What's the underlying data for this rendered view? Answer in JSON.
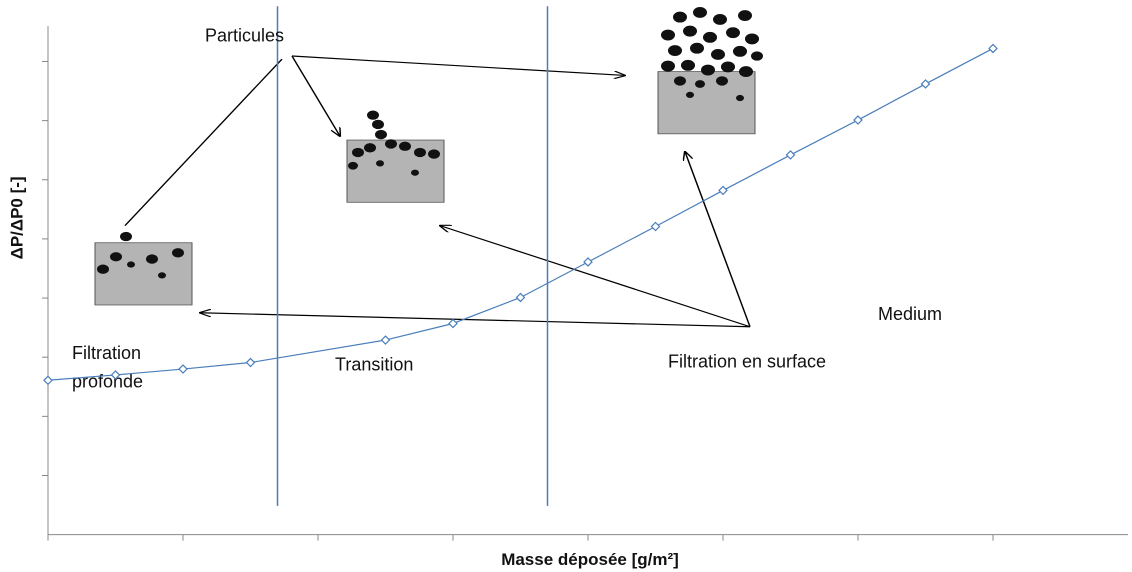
{
  "chart_data": {
    "type": "line",
    "xlabel": "Masse déposée [g/m²]",
    "ylabel": "ΔP/ΔP0 [-]",
    "x": [
      0,
      0.5,
      1,
      1.5,
      2.5,
      3,
      3.5,
      4,
      4.5,
      5,
      5.5,
      6,
      6.5,
      7
    ],
    "series": [
      {
        "color": "#4a7ebb",
        "values": [
          2.61,
          2.7,
          2.8,
          2.91,
          3.29,
          3.57,
          4.01,
          4.61,
          5.21,
          5.82,
          6.42,
          7.01,
          7.62,
          8.22
        ]
      }
    ],
    "xlim": [
      0,
      8
    ],
    "ylim": [
      0,
      8.6
    ],
    "xticks": [
      0,
      1,
      2,
      3,
      4,
      5,
      6,
      7
    ],
    "yticks": [
      1,
      2,
      3,
      4,
      5,
      6,
      7,
      8
    ],
    "vlines": [
      1.7,
      3.7
    ],
    "annotations": [
      "Particules",
      "Filtration",
      "profonde",
      "Transition",
      "Filtration en surface",
      "Medium"
    ]
  }
}
